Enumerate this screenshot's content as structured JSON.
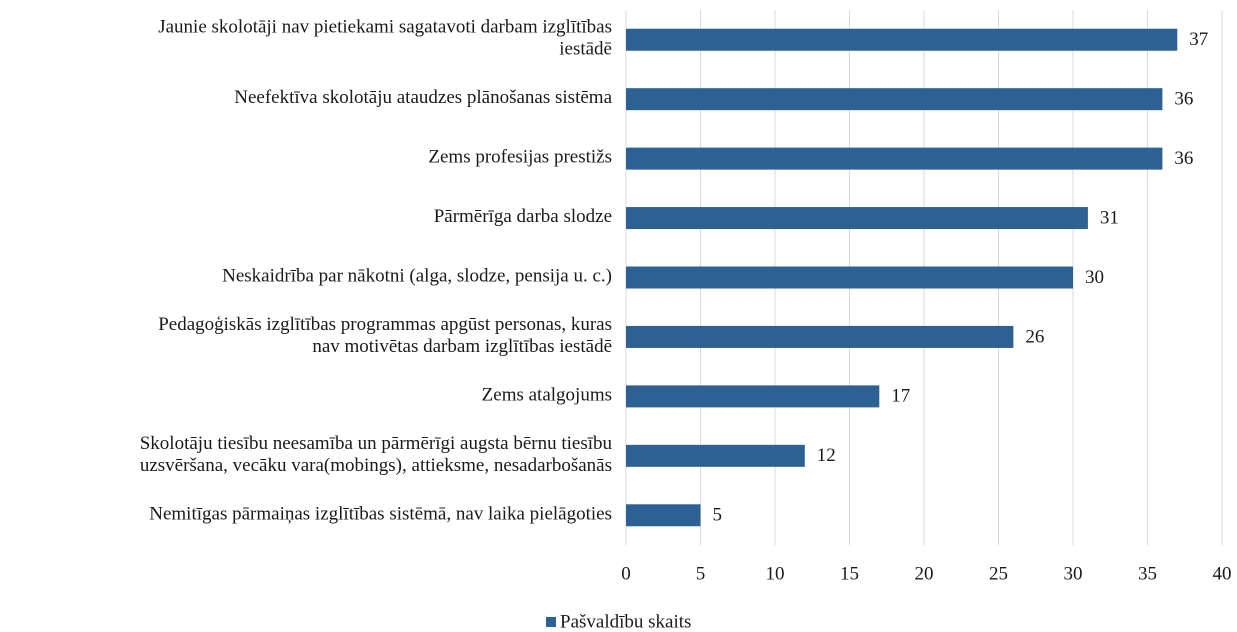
{
  "chart_data": {
    "type": "bar",
    "orientation": "horizontal",
    "categories": [
      [
        "Jaunie skolotāji nav pietiekami sagatavoti darbam izglītības",
        "iestādē"
      ],
      [
        "Neefektīva skolotāju ataudzes plānošanas sistēma"
      ],
      [
        "Zems profesijas prestižs"
      ],
      [
        "Pārmērīga darba slodze"
      ],
      [
        "Neskaidrība par nākotni (alga, slodze, pensija u. c.)"
      ],
      [
        "Pedagoģiskās izglītības programmas apgūst personas, kuras",
        "nav motivētas darbam izglītības iestādē"
      ],
      [
        "Zems atalgojums"
      ],
      [
        "Skolotāju tiesību neesamība un pārmērīgi augsta bērnu tiesību",
        "uzsvēršana, vecāku vara(mobings), attieksme, nesadarbošanās"
      ],
      [
        "Nemitīgas pārmaiņas izglītības sistēmā, nav laika pielāgoties"
      ]
    ],
    "series": [
      {
        "name": "Pašvaldību skaits",
        "color": "#2e6193",
        "values": [
          37,
          36,
          36,
          31,
          30,
          26,
          17,
          12,
          5
        ]
      }
    ],
    "xlim": [
      0,
      40
    ],
    "xticks": [
      0,
      5,
      10,
      15,
      20,
      25,
      30,
      35,
      40
    ],
    "grid": true,
    "legend": "bottom"
  }
}
